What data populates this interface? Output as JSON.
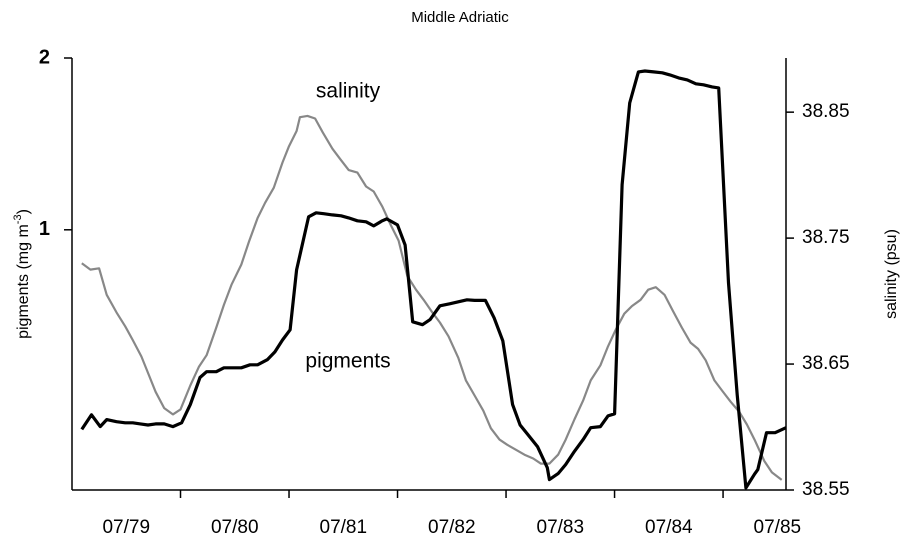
{
  "chart_data": {
    "type": "line",
    "title": "Middle Adriatic",
    "ylabel": {
      "text": "pigments (mg m",
      "sup": "-3",
      "end": ")"
    },
    "y2label": "salinity (psu)",
    "annotations": [
      "salinity",
      "pigments"
    ],
    "xlim": [
      0,
      6.58
    ],
    "xticks": [
      {
        "value": 0.5,
        "label": "07/79"
      },
      {
        "value": 1.5,
        "label": "07/80"
      },
      {
        "value": 2.5,
        "label": "07/81"
      },
      {
        "value": 3.5,
        "label": "07/82"
      },
      {
        "value": 4.5,
        "label": "07/83"
      },
      {
        "value": 5.5,
        "label": "07/84"
      },
      {
        "value": 6.5,
        "label": "07/85"
      }
    ],
    "xminorticks": [
      1,
      2,
      3,
      4,
      5,
      6
    ],
    "ylim": [
      0.35,
      2
    ],
    "yticks": [
      1,
      2
    ],
    "ylog": true,
    "y2lim": [
      38.55,
      38.893
    ],
    "y2ticks": [
      38.55,
      38.65,
      38.75,
      38.85
    ],
    "series": [
      {
        "name": "pigments",
        "color": "#000000",
        "axis": "y",
        "x": [
          0.09,
          0.18,
          0.26,
          0.32,
          0.41,
          0.49,
          0.56,
          0.63,
          0.7,
          0.77,
          0.85,
          0.93,
          1.01,
          1.09,
          1.18,
          1.24,
          1.33,
          1.4,
          1.47,
          1.56,
          1.64,
          1.71,
          1.8,
          1.87,
          1.94,
          2.01,
          2.07,
          2.18,
          2.25,
          2.32,
          2.4,
          2.48,
          2.55,
          2.63,
          2.71,
          2.78,
          2.86,
          2.9,
          3.0,
          3.07,
          3.14,
          3.23,
          3.3,
          3.39,
          3.48,
          3.56,
          3.64,
          3.71,
          3.81,
          3.89,
          3.97,
          4.06,
          4.13,
          4.2,
          4.29,
          4.38,
          4.4,
          4.48,
          4.55,
          4.63,
          4.71,
          4.78,
          4.87,
          4.94,
          5.0,
          5.07,
          5.14,
          5.22,
          5.28,
          5.36,
          5.44,
          5.51,
          5.59,
          5.67,
          5.75,
          5.82,
          5.9,
          5.96,
          6.05,
          6.13,
          6.21,
          6.29,
          6.32,
          6.4,
          6.48,
          6.58
        ],
        "values": [
          0.447,
          0.474,
          0.452,
          0.465,
          0.461,
          0.459,
          0.459,
          0.457,
          0.455,
          0.457,
          0.457,
          0.452,
          0.459,
          0.494,
          0.551,
          0.564,
          0.564,
          0.573,
          0.573,
          0.573,
          0.58,
          0.58,
          0.592,
          0.611,
          0.641,
          0.668,
          0.851,
          1.054,
          1.071,
          1.067,
          1.062,
          1.058,
          1.049,
          1.037,
          1.033,
          1.016,
          1.037,
          1.045,
          1.02,
          0.941,
          0.69,
          0.682,
          0.696,
          0.736,
          0.742,
          0.748,
          0.754,
          0.752,
          0.752,
          0.701,
          0.639,
          0.494,
          0.455,
          0.438,
          0.417,
          0.383,
          0.365,
          0.374,
          0.388,
          0.409,
          0.429,
          0.45,
          0.452,
          0.472,
          0.476,
          1.199,
          1.668,
          1.891,
          1.898,
          1.891,
          1.884,
          1.868,
          1.846,
          1.831,
          1.802,
          1.795,
          1.78,
          1.773,
          0.807,
          0.514,
          0.353,
          0.373,
          0.38,
          0.441,
          0.441,
          0.45
        ]
      },
      {
        "name": "salinity",
        "color": "#888888",
        "axis": "y2",
        "x": [
          0.09,
          0.17,
          0.25,
          0.32,
          0.41,
          0.49,
          0.56,
          0.64,
          0.7,
          0.77,
          0.85,
          0.93,
          1.0,
          1.09,
          1.17,
          1.24,
          1.33,
          1.4,
          1.47,
          1.56,
          1.63,
          1.71,
          1.78,
          1.86,
          1.94,
          2.0,
          2.07,
          2.1,
          2.17,
          2.24,
          2.31,
          2.4,
          2.47,
          2.55,
          2.63,
          2.71,
          2.78,
          2.86,
          2.94,
          3.01,
          3.09,
          3.17,
          3.24,
          3.32,
          3.39,
          3.47,
          3.56,
          3.63,
          3.71,
          3.79,
          3.86,
          3.94,
          4.01,
          4.09,
          4.17,
          4.25,
          4.32,
          4.4,
          4.48,
          4.55,
          4.63,
          4.71,
          4.78,
          4.87,
          4.94,
          5.01,
          5.09,
          5.16,
          5.24,
          5.31,
          5.38,
          5.46,
          5.54,
          5.62,
          5.7,
          5.77,
          5.84,
          5.92,
          5.99,
          6.07,
          6.15,
          6.22,
          6.29,
          6.38,
          6.45,
          6.54
        ],
        "values": [
          38.73,
          38.725,
          38.726,
          38.705,
          38.691,
          38.68,
          38.669,
          38.656,
          38.643,
          38.628,
          38.615,
          38.61,
          38.614,
          38.633,
          38.648,
          38.657,
          38.679,
          38.697,
          38.713,
          38.729,
          38.747,
          38.766,
          38.778,
          38.79,
          38.81,
          38.823,
          38.835,
          38.846,
          38.847,
          38.845,
          38.834,
          38.821,
          38.813,
          38.804,
          38.802,
          38.791,
          38.787,
          38.775,
          38.76,
          38.748,
          38.72,
          38.709,
          38.701,
          38.691,
          38.683,
          38.672,
          38.655,
          38.637,
          38.625,
          38.613,
          38.599,
          38.59,
          38.586,
          38.582,
          38.578,
          38.575,
          38.571,
          38.571,
          38.578,
          38.59,
          38.606,
          38.621,
          38.637,
          38.649,
          38.664,
          38.677,
          38.69,
          38.696,
          38.701,
          38.709,
          38.711,
          38.705,
          38.692,
          38.679,
          38.667,
          38.662,
          38.653,
          38.637,
          38.629,
          38.62,
          38.612,
          38.602,
          38.59,
          38.573,
          38.564,
          38.558
        ]
      }
    ]
  }
}
